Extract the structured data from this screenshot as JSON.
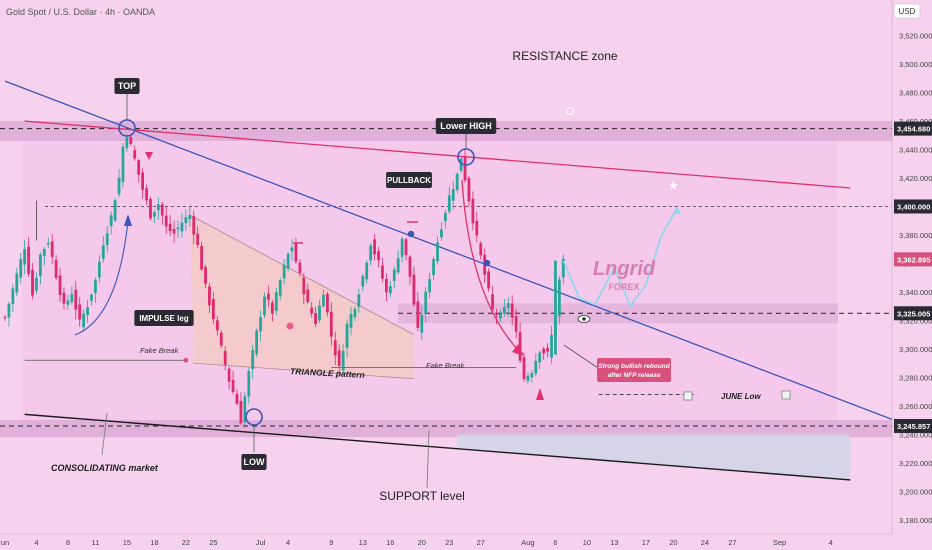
{
  "header": {
    "symbol": "Gold Spot / U.S. Dollar · 4h · OANDA",
    "currency": "USD"
  },
  "colors": {
    "background": "#f7d2ee",
    "plot_tint": "#f3c7ea",
    "zone": "#d9a6d4",
    "support_fill": "#cfd5e8",
    "bull_candle": "#26a69a",
    "bear_candle": "#e0286c",
    "blue_line": "#3b55b8",
    "red_line": "#e0316e",
    "black_line": "#1a1a1a",
    "projection": "#8ad8ec",
    "dark_badge": "#2a2a32",
    "red_badge": "#d8507c",
    "axis_text": "#444444",
    "watermark": "#d47fb0"
  },
  "chart_data": {
    "type": "line",
    "instrument": "XAUUSD",
    "timeframe": "4h",
    "y_axis": {
      "ylim": [
        3170,
        3545
      ],
      "ticks": [
        "3,520.000",
        "3,500.000",
        "3,480.000",
        "3,460.000",
        "3,440.000",
        "3,420.000",
        "3,400.000",
        "3,380.000",
        "3,360.000",
        "3,340.000",
        "3,320.000",
        "3,300.000",
        "3,280.000",
        "3,260.000",
        "3,240.000",
        "3,220.000",
        "3,200.000",
        "3,180.000"
      ],
      "tick_values": [
        3520,
        3500,
        3480,
        3460,
        3440,
        3420,
        3400,
        3380,
        3360,
        3340,
        3320,
        3300,
        3280,
        3260,
        3240,
        3220,
        3200,
        3180
      ]
    },
    "x_axis": {
      "ticks": [
        "un",
        "4",
        "8",
        "11",
        "15",
        "18",
        "22",
        "25",
        "Jul",
        "4",
        "9",
        "13",
        "16",
        "20",
        "23",
        "27",
        "Aug",
        "6",
        "10",
        "13",
        "17",
        "20",
        "24",
        "27",
        "Sep",
        "4"
      ],
      "tick_index": [
        0,
        8,
        16,
        23,
        31,
        38,
        46,
        53,
        65,
        72,
        83,
        91,
        98,
        106,
        113,
        121,
        133,
        140,
        148,
        155,
        163,
        170,
        178,
        185,
        197,
        210
      ],
      "index_range": [
        0,
        220
      ]
    },
    "price_labels": [
      {
        "text": "3,454.680",
        "value": 3454.68,
        "style": "dark"
      },
      {
        "text": "3,400.000",
        "value": 3400.0,
        "style": "dark"
      },
      {
        "text": "3,362.895",
        "value": 3362.895,
        "style": "red"
      },
      {
        "text": "3,325.005",
        "value": 3325.005,
        "style": "dark"
      },
      {
        "text": "3,245.857",
        "value": 3245.857,
        "style": "dark"
      }
    ],
    "price_path": [
      [
        0,
        3322
      ],
      [
        3,
        3352
      ],
      [
        5,
        3372
      ],
      [
        7,
        3338
      ],
      [
        9,
        3366
      ],
      [
        11,
        3376
      ],
      [
        13,
        3352
      ],
      [
        15,
        3329
      ],
      [
        17,
        3340
      ],
      [
        19,
        3318
      ],
      [
        21,
        3331
      ],
      [
        23,
        3348
      ],
      [
        25,
        3375
      ],
      [
        27,
        3393
      ],
      [
        29,
        3420
      ],
      [
        30,
        3442
      ],
      [
        31,
        3451
      ],
      [
        33,
        3433
      ],
      [
        35,
        3412
      ],
      [
        37,
        3394
      ],
      [
        39,
        3402
      ],
      [
        41,
        3385
      ],
      [
        43,
        3381
      ],
      [
        45,
        3389
      ],
      [
        47,
        3394
      ],
      [
        49,
        3372
      ],
      [
        51,
        3343
      ],
      [
        53,
        3322
      ],
      [
        55,
        3300
      ],
      [
        57,
        3278
      ],
      [
        59,
        3262
      ],
      [
        60,
        3250
      ],
      [
        62,
        3283
      ],
      [
        64,
        3311
      ],
      [
        66,
        3338
      ],
      [
        68,
        3326
      ],
      [
        70,
        3348
      ],
      [
        72,
        3366
      ],
      [
        73,
        3372
      ],
      [
        75,
        3351
      ],
      [
        77,
        3331
      ],
      [
        79,
        3319
      ],
      [
        81,
        3341
      ],
      [
        83,
        3309
      ],
      [
        85,
        3286
      ],
      [
        87,
        3317
      ],
      [
        89,
        3331
      ],
      [
        91,
        3351
      ],
      [
        93,
        3375
      ],
      [
        95,
        3360
      ],
      [
        97,
        3339
      ],
      [
        99,
        3354
      ],
      [
        101,
        3378
      ],
      [
        103,
        3351
      ],
      [
        105,
        3312
      ],
      [
        107,
        3338
      ],
      [
        109,
        3364
      ],
      [
        111,
        3387
      ],
      [
        113,
        3407
      ],
      [
        115,
        3422
      ],
      [
        116,
        3435
      ],
      [
        118,
        3405
      ],
      [
        120,
        3377
      ],
      [
        122,
        3352
      ],
      [
        124,
        3327
      ],
      [
        126,
        3322
      ],
      [
        128,
        3333
      ],
      [
        130,
        3310
      ],
      [
        132,
        3279
      ],
      [
        134,
        3285
      ],
      [
        136,
        3300
      ],
      [
        138,
        3296
      ],
      [
        140,
        3322
      ],
      [
        141,
        3348
      ],
      [
        142,
        3362
      ]
    ],
    "projection_path": [
      [
        142,
        3362
      ],
      [
        146,
        3336
      ],
      [
        150,
        3331
      ],
      [
        155,
        3357
      ],
      [
        159,
        3330
      ],
      [
        163,
        3345
      ],
      [
        167,
        3380
      ],
      [
        171,
        3399
      ]
    ],
    "levels": [
      {
        "name": "resistance-zone-line",
        "value": 3454.68
      },
      {
        "name": "dashed-3400",
        "value": 3400.0
      },
      {
        "name": "dashed-3325",
        "value": 3325.005
      },
      {
        "name": "support-line",
        "value": 3245.857
      },
      {
        "name": "fake-break-left",
        "value": 3292
      },
      {
        "name": "fake-break-right",
        "value": 3287
      },
      {
        "name": "june-low",
        "value": 3268
      }
    ],
    "trendlines": [
      {
        "name": "blue-descending",
        "from": [
          0,
          3488
        ],
        "to": [
          228,
          3248
        ]
      },
      {
        "name": "red-resistance",
        "from": [
          5,
          3460
        ],
        "to": [
          215,
          3413
        ]
      },
      {
        "name": "black-support",
        "from": [
          5,
          3254
        ],
        "to": [
          215,
          3208
        ]
      }
    ],
    "annotations": {
      "resistance_zone": "RESISTANCE zone",
      "top": "TOP",
      "lower_high": "Lower HIGH",
      "pullback": "PULLBACK",
      "impulse_leg": "IMPULSE leg",
      "fake_break_left": "Fake Break",
      "fake_break_right": "Fake Break",
      "triangle": "TRIANGLE pattern",
      "consolidating": "CONSOLIDATING market",
      "low": "LOW",
      "support_level": "SUPPORT level",
      "june_low": "JUNE Low",
      "rebound_line1": "Strong bullish rebound",
      "rebound_line2": "after NFP release",
      "watermark_name": "Lngrid",
      "watermark_sub": "FOREX"
    }
  }
}
